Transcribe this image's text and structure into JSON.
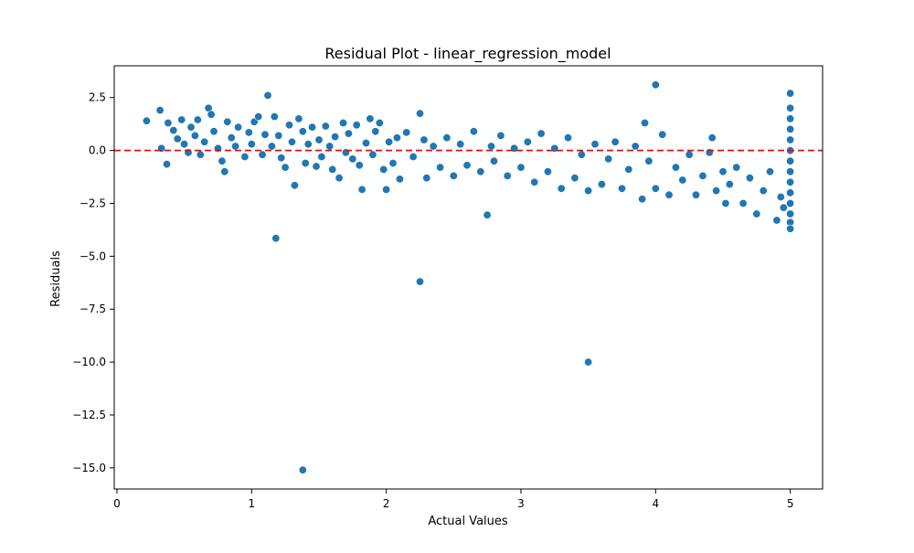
{
  "colors": {
    "points": "#1f77b4",
    "point_edge": "#ffffff",
    "zero_line": "#ff0000",
    "axes": "#000000",
    "background": "#ffffff"
  },
  "chart_data": {
    "type": "scatter",
    "title": "Residual Plot - linear_regression_model",
    "xlabel": "Actual Values",
    "ylabel": "Residuals",
    "xlim": [
      -0.02,
      5.24
    ],
    "ylim": [
      -16.0,
      4.0
    ],
    "x_ticks": [
      0,
      1,
      2,
      3,
      4,
      5
    ],
    "x_tick_labels": [
      "0",
      "1",
      "2",
      "3",
      "4",
      "5"
    ],
    "y_ticks": [
      2.5,
      0.0,
      -2.5,
      -5.0,
      -7.5,
      -10.0,
      -12.5,
      -15.0
    ],
    "y_tick_labels": [
      "2.5",
      "0.0",
      "−2.5",
      "−5.0",
      "−7.5",
      "−10.0",
      "−12.5",
      "−15.0"
    ],
    "grid": false,
    "legend": "none",
    "reference_line": {
      "y": 0,
      "style": "dashed",
      "color": "#ff0000"
    },
    "series": [
      {
        "points": [
          [
            0.22,
            1.4
          ],
          [
            0.32,
            1.9
          ],
          [
            0.33,
            0.1
          ],
          [
            0.37,
            -0.65
          ],
          [
            0.38,
            1.3
          ],
          [
            0.42,
            0.95
          ],
          [
            0.45,
            0.55
          ],
          [
            0.48,
            1.45
          ],
          [
            0.5,
            0.3
          ],
          [
            0.53,
            -0.1
          ],
          [
            0.55,
            1.1
          ],
          [
            0.58,
            0.7
          ],
          [
            0.6,
            1.45
          ],
          [
            0.62,
            -0.2
          ],
          [
            0.65,
            0.4
          ],
          [
            0.68,
            2.0
          ],
          [
            0.7,
            1.7
          ],
          [
            0.72,
            0.9
          ],
          [
            0.75,
            0.1
          ],
          [
            0.78,
            -0.5
          ],
          [
            0.8,
            -1.0
          ],
          [
            0.82,
            1.35
          ],
          [
            0.85,
            0.6
          ],
          [
            0.88,
            0.2
          ],
          [
            0.9,
            1.1
          ],
          [
            0.95,
            -0.3
          ],
          [
            0.98,
            0.85
          ],
          [
            1.0,
            0.3
          ],
          [
            1.02,
            1.35
          ],
          [
            1.05,
            1.6
          ],
          [
            1.08,
            -0.2
          ],
          [
            1.1,
            0.75
          ],
          [
            1.12,
            2.6
          ],
          [
            1.15,
            0.2
          ],
          [
            1.17,
            1.6
          ],
          [
            1.18,
            -4.15
          ],
          [
            1.2,
            0.7
          ],
          [
            1.22,
            -0.35
          ],
          [
            1.25,
            -0.8
          ],
          [
            1.28,
            1.2
          ],
          [
            1.3,
            0.4
          ],
          [
            1.32,
            -1.65
          ],
          [
            1.35,
            1.5
          ],
          [
            1.38,
            -15.1
          ],
          [
            1.38,
            0.9
          ],
          [
            1.4,
            -0.6
          ],
          [
            1.42,
            0.3
          ],
          [
            1.45,
            1.1
          ],
          [
            1.48,
            -0.75
          ],
          [
            1.5,
            0.5
          ],
          [
            1.52,
            -0.3
          ],
          [
            1.55,
            1.15
          ],
          [
            1.58,
            0.2
          ],
          [
            1.6,
            -0.9
          ],
          [
            1.62,
            0.65
          ],
          [
            1.65,
            -1.3
          ],
          [
            1.68,
            1.3
          ],
          [
            1.7,
            -0.1
          ],
          [
            1.72,
            0.8
          ],
          [
            1.75,
            -0.4
          ],
          [
            1.78,
            1.2
          ],
          [
            1.8,
            -0.7
          ],
          [
            1.82,
            -1.85
          ],
          [
            1.85,
            0.35
          ],
          [
            1.88,
            1.5
          ],
          [
            1.9,
            -0.2
          ],
          [
            1.92,
            0.9
          ],
          [
            1.95,
            1.3
          ],
          [
            1.98,
            -0.9
          ],
          [
            2.0,
            -1.85
          ],
          [
            2.02,
            0.4
          ],
          [
            2.05,
            -0.6
          ],
          [
            2.08,
            0.6
          ],
          [
            2.1,
            -1.35
          ],
          [
            2.15,
            0.85
          ],
          [
            2.2,
            -0.3
          ],
          [
            2.25,
            1.75
          ],
          [
            2.25,
            -6.2
          ],
          [
            2.28,
            0.5
          ],
          [
            2.3,
            -1.3
          ],
          [
            2.35,
            0.2
          ],
          [
            2.4,
            -0.8
          ],
          [
            2.45,
            0.6
          ],
          [
            2.5,
            -1.2
          ],
          [
            2.55,
            0.3
          ],
          [
            2.6,
            -0.7
          ],
          [
            2.65,
            0.9
          ],
          [
            2.7,
            -1.0
          ],
          [
            2.75,
            -3.05
          ],
          [
            2.78,
            0.2
          ],
          [
            2.8,
            -0.5
          ],
          [
            2.85,
            0.7
          ],
          [
            2.9,
            -1.2
          ],
          [
            2.95,
            0.1
          ],
          [
            3.0,
            -0.8
          ],
          [
            3.05,
            0.4
          ],
          [
            3.1,
            -1.5
          ],
          [
            3.15,
            0.8
          ],
          [
            3.2,
            -1.0
          ],
          [
            3.25,
            0.1
          ],
          [
            3.3,
            -1.8
          ],
          [
            3.35,
            0.6
          ],
          [
            3.4,
            -1.3
          ],
          [
            3.45,
            -0.2
          ],
          [
            3.5,
            -10.0
          ],
          [
            3.5,
            -1.9
          ],
          [
            3.55,
            0.3
          ],
          [
            3.6,
            -1.6
          ],
          [
            3.65,
            -0.4
          ],
          [
            3.7,
            0.4
          ],
          [
            3.75,
            -1.8
          ],
          [
            3.8,
            -0.9
          ],
          [
            3.85,
            0.2
          ],
          [
            3.9,
            -2.3
          ],
          [
            3.92,
            1.3
          ],
          [
            3.95,
            -0.5
          ],
          [
            4.0,
            3.1
          ],
          [
            4.0,
            -1.8
          ],
          [
            4.05,
            0.75
          ],
          [
            4.1,
            -2.1
          ],
          [
            4.15,
            -0.8
          ],
          [
            4.2,
            -1.4
          ],
          [
            4.25,
            -0.2
          ],
          [
            4.3,
            -2.1
          ],
          [
            4.35,
            -1.2
          ],
          [
            4.4,
            -0.1
          ],
          [
            4.42,
            0.6
          ],
          [
            4.45,
            -1.9
          ],
          [
            4.5,
            -1.0
          ],
          [
            4.52,
            -2.5
          ],
          [
            4.55,
            -1.6
          ],
          [
            4.6,
            -0.8
          ],
          [
            4.65,
            -2.5
          ],
          [
            4.7,
            -1.3
          ],
          [
            4.75,
            -3.0
          ],
          [
            4.8,
            -1.9
          ],
          [
            4.85,
            -1.0
          ],
          [
            4.9,
            -3.3
          ],
          [
            4.93,
            -2.2
          ],
          [
            4.95,
            -2.7
          ],
          [
            5.0,
            2.7
          ],
          [
            5.0,
            2.0
          ],
          [
            5.0,
            1.5
          ],
          [
            5.0,
            1.0
          ],
          [
            5.0,
            0.5
          ],
          [
            5.0,
            0.0
          ],
          [
            5.0,
            -0.5
          ],
          [
            5.0,
            -1.0
          ],
          [
            5.0,
            -1.5
          ],
          [
            5.0,
            -2.0
          ],
          [
            5.0,
            -2.5
          ],
          [
            5.0,
            -3.0
          ],
          [
            5.0,
            -3.4
          ],
          [
            5.0,
            -3.7
          ]
        ]
      }
    ]
  }
}
